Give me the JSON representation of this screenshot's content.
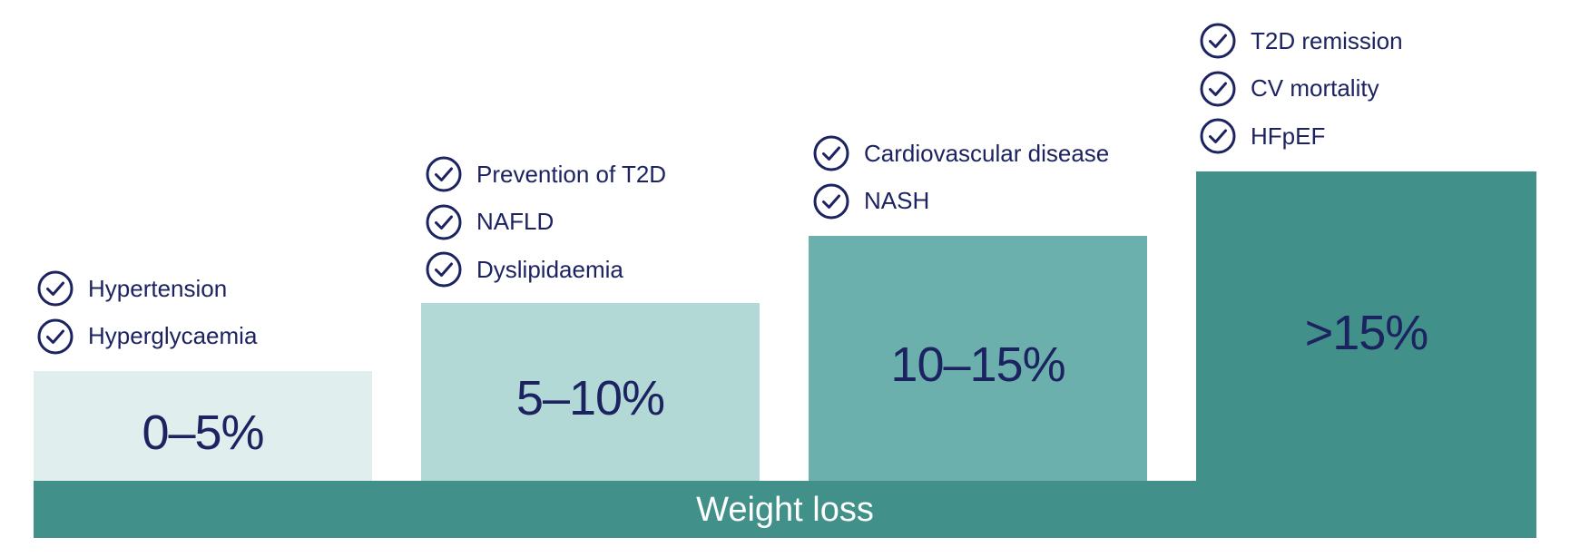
{
  "base": {
    "label": "Weight loss",
    "color": "#41918a"
  },
  "tiers": [
    {
      "range": "0–5%",
      "color": "#e0efee",
      "benefits": [
        "Hypertension",
        "Hyperglycaemia"
      ]
    },
    {
      "range": "5–10%",
      "color": "#b2d9d6",
      "benefits": [
        "Prevention of T2D",
        "NAFLD",
        "Dyslipidaemia"
      ]
    },
    {
      "range": "10–15%",
      "color": "#6cb0ad",
      "benefits": [
        "Cardiovascular disease",
        "NASH"
      ]
    },
    {
      "range": ">15%",
      "color": "#41918a",
      "benefits": [
        "T2D remission",
        "CV mortality",
        "HFpEF"
      ]
    }
  ],
  "icon": "check-circle-icon",
  "text_color": "#1c2360"
}
